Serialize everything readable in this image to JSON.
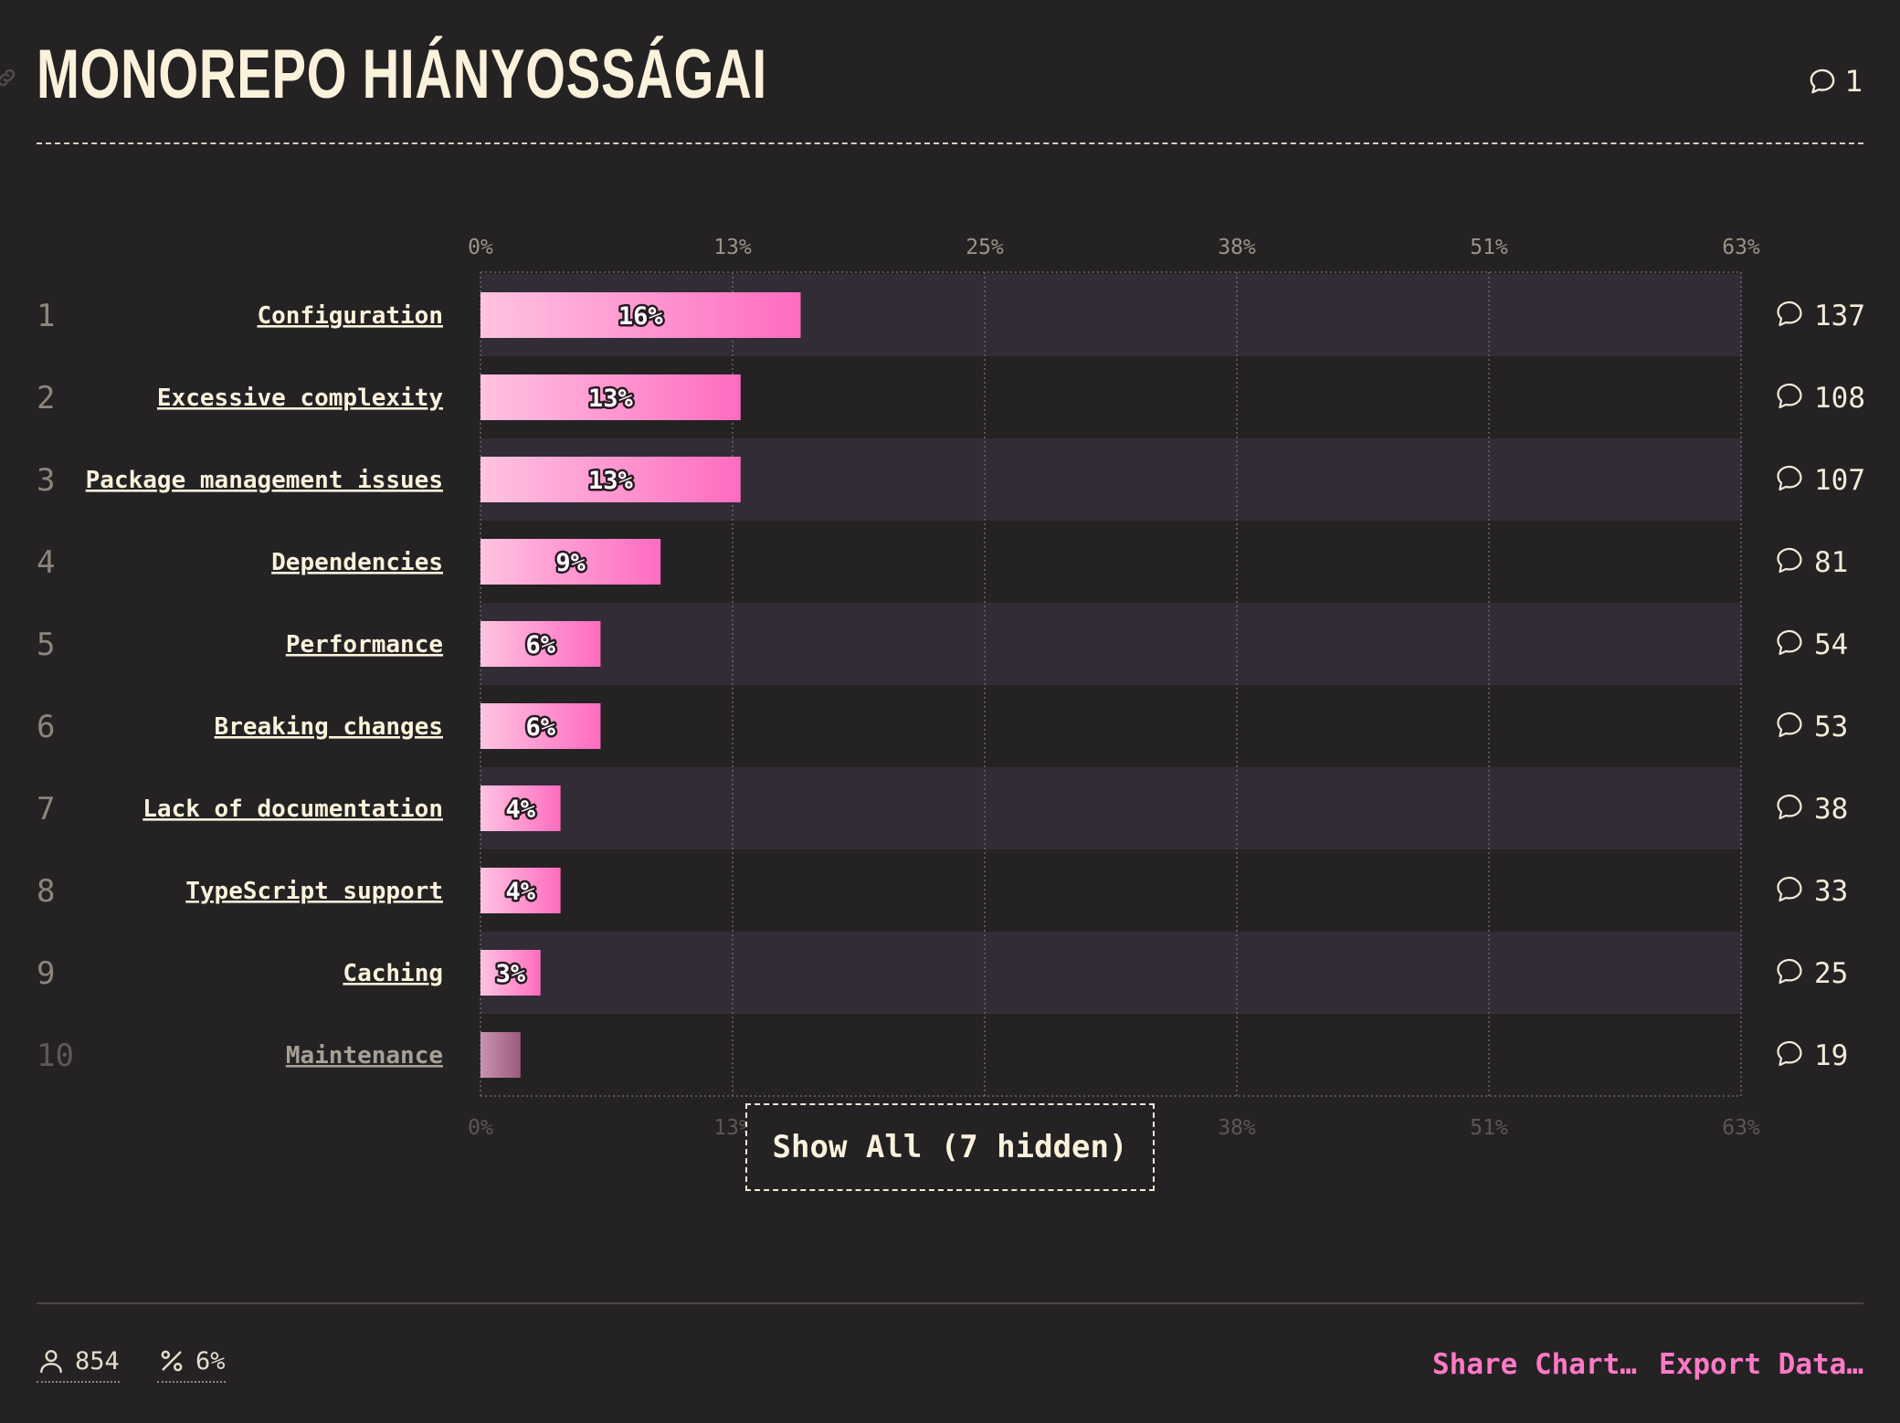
{
  "header": {
    "title": "MONOREPO HIÁNYOSSÁGAI",
    "comment_count": "1"
  },
  "chart_data": {
    "type": "bar",
    "orientation": "horizontal",
    "title": "MONOREPO HIÁNYOSSÁGAI",
    "xlim": [
      0,
      63
    ],
    "x_ticks": [
      "0%",
      "13%",
      "25%",
      "38%",
      "51%",
      "63%"
    ],
    "grid": true,
    "categories": [
      "Configuration",
      "Excessive complexity",
      "Package management issues",
      "Dependencies",
      "Performance",
      "Breaking changes",
      "Lack of documentation",
      "TypeScript support",
      "Caching",
      "Maintenance"
    ],
    "ranks": [
      "1",
      "2",
      "3",
      "4",
      "5",
      "6",
      "7",
      "8",
      "9",
      "10"
    ],
    "values": [
      16,
      13,
      13,
      9,
      6,
      6,
      4,
      4,
      3,
      2
    ],
    "value_labels": [
      "16%",
      "13%",
      "13%",
      "9%",
      "6%",
      "6%",
      "4%",
      "4%",
      "3%",
      ""
    ],
    "comments": [
      "137",
      "108",
      "107",
      "81",
      "54",
      "53",
      "38",
      "33",
      "25",
      "19"
    ],
    "colors": {
      "bar_start": "#ffc3e1",
      "bar_end": "#ff6cc0",
      "bar_muted_start": "#c993b0",
      "bar_muted_end": "#9b5a7e",
      "band": "#322c37",
      "background": "#252224"
    }
  },
  "show_all_label": "Show All (7 hidden)",
  "footer": {
    "respondents": "854",
    "percent": "6%",
    "share_label": "Share Chart…",
    "export_label": "Export Data…"
  },
  "icons": {
    "link": "link-icon",
    "comment": "comment-icon",
    "person": "person-icon",
    "percent": "percent-icon"
  }
}
